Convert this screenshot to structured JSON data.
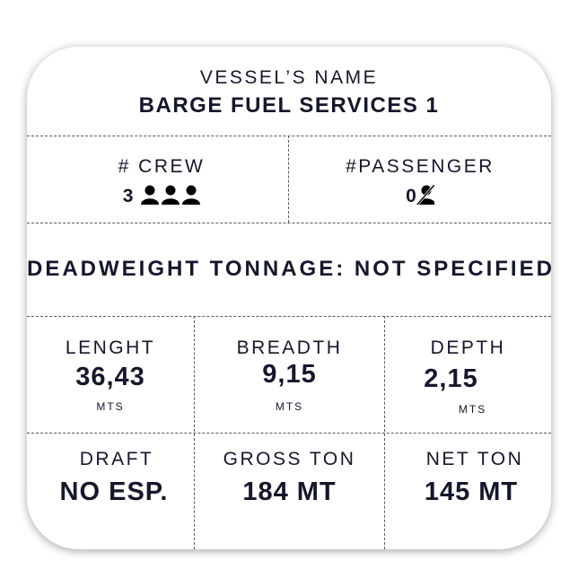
{
  "vessel": {
    "label": "VESSEL’S NAME",
    "name": "BARGE FUEL SERVICES 1"
  },
  "crew": {
    "label": "# CREW",
    "value": "3",
    "icon": "person-icon",
    "icon_count": 3
  },
  "passenger": {
    "label": "#PASSENGER",
    "value": "0",
    "icon": "person-slash-icon"
  },
  "deadweight": {
    "text": "DEADWEIGHT TONNAGE: NOT SPECIFIED"
  },
  "length": {
    "label": "LENGHT",
    "value": "36,43",
    "unit": "MTS"
  },
  "breadth": {
    "label": "BREADTH",
    "value": "9,15",
    "unit": "MTS"
  },
  "depth": {
    "label": "DEPTH",
    "value": "2,15",
    "unit": "MTS"
  },
  "draft": {
    "label": "DRAFT",
    "value": "NO ESP."
  },
  "gross": {
    "label": "GROSS TON",
    "value": "184 MT"
  },
  "net": {
    "label": "NET TON",
    "value": "145 MT"
  },
  "colors": {
    "text": "#15172a",
    "divider": "#555a66"
  }
}
